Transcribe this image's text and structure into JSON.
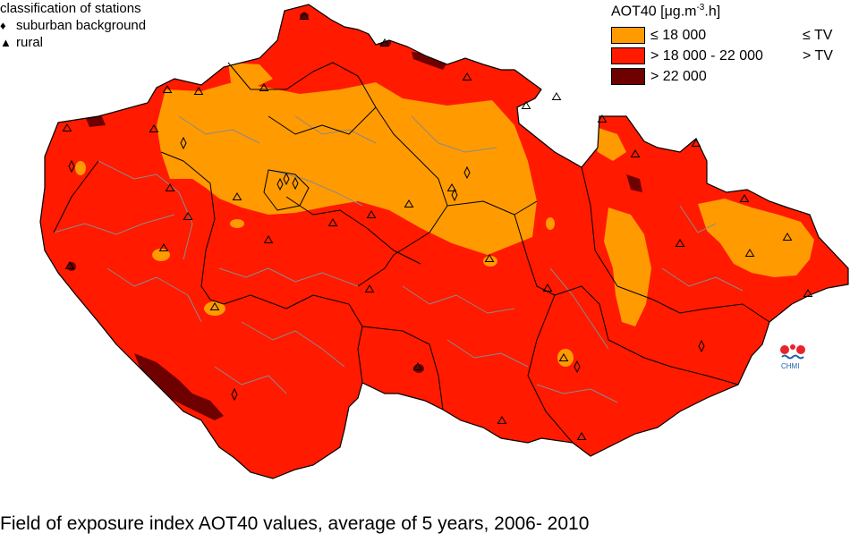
{
  "stations_legend": {
    "title": "classification of stations",
    "items": [
      {
        "symbol": "diamond",
        "label": "suburban background"
      },
      {
        "symbol": "triangle",
        "label": "rural"
      }
    ]
  },
  "aot_legend": {
    "title": "AOT40 [μg.m-3.h]",
    "title_base": "AOT40 [μg.m",
    "title_sup": "-3",
    "title_tail": ".h]",
    "classes": [
      {
        "label": "≤ 18 000",
        "tv": "≤ TV",
        "color": "#ff9b00"
      },
      {
        "label": "> 18 000 - 22 000",
        "tv": "> TV",
        "color": "#ff1a00"
      },
      {
        "label": "> 22 000",
        "tv": "",
        "color": "#6e0000"
      }
    ]
  },
  "logo": {
    "text": "CHMI"
  },
  "caption": "Field of exposure index AOT40 values, average of 5 years, 2006- 2010",
  "colors": {
    "orange": "#ff9b00",
    "red": "#ff1a00",
    "dark": "#6e0000",
    "border": "#8a8a8a"
  }
}
